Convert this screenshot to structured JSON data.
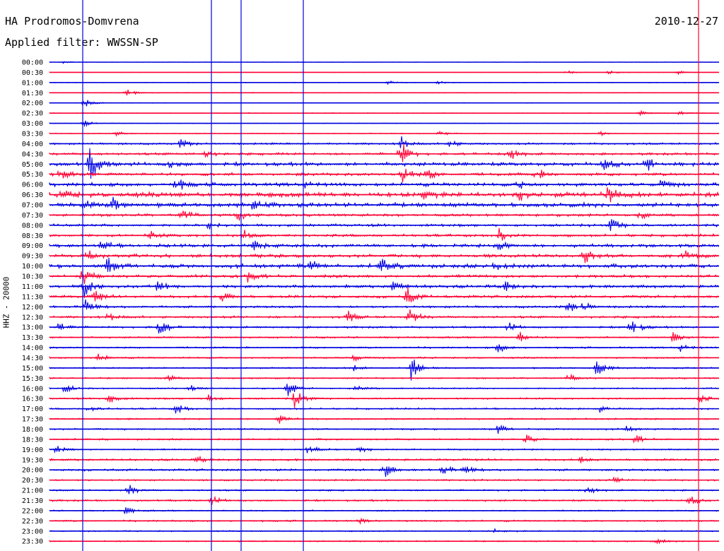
{
  "header": {
    "station": "HA Prodromos-Domvrena",
    "date": "2010-12-27",
    "filter_text": "Applied filter: WWSSN-SP"
  },
  "channel_label": "HHZ - 20000",
  "colors": {
    "blue": "#0000e0",
    "red": "#ff0033"
  },
  "chart_data": {
    "type": "line",
    "title": "HA Prodromos-Domvrena",
    "ylabel": "HHZ - 20000",
    "row_labels": [
      "00:00",
      "00:30",
      "01:00",
      "01:30",
      "02:00",
      "02:30",
      "03:00",
      "03:30",
      "04:00",
      "04:30",
      "05:00",
      "05:30",
      "06:00",
      "06:30",
      "07:00",
      "07:30",
      "08:00",
      "08:30",
      "09:00",
      "09:30",
      "10:00",
      "10:30",
      "11:00",
      "11:30",
      "12:00",
      "12:30",
      "13:00",
      "13:30",
      "14:00",
      "14:30",
      "15:00",
      "15:30",
      "16:00",
      "16:30",
      "17:00",
      "17:30",
      "18:00",
      "18:30",
      "19:00",
      "19:30",
      "20:00",
      "20:30",
      "21:00",
      "21:30",
      "22:00",
      "22:30",
      "23:00",
      "23:30"
    ],
    "trace_colors": [
      "blue",
      "red"
    ],
    "row_noise": [
      0.3,
      0.3,
      0.4,
      0.5,
      0.4,
      0.5,
      0.4,
      0.6,
      1.2,
      1.5,
      2.2,
      1.8,
      2.2,
      3.0,
      2.5,
      1.6,
      1.6,
      1.6,
      2.0,
      2.0,
      2.4,
      1.8,
      1.8,
      1.6,
      1.4,
      1.4,
      1.2,
      1.0,
      1.0,
      1.0,
      0.9,
      0.9,
      0.9,
      1.0,
      1.0,
      0.9,
      1.0,
      1.0,
      0.9,
      1.2,
      1.3,
      1.0,
      1.0,
      1.1,
      0.8,
      1.0,
      0.8,
      0.8
    ],
    "events": [
      {
        "row": 0,
        "x": 91,
        "a": 2
      },
      {
        "row": 1,
        "x": 802,
        "a": 3
      },
      {
        "row": 1,
        "x": 862,
        "a": 3
      },
      {
        "row": 1,
        "x": 960,
        "a": 3
      },
      {
        "row": 2,
        "x": 550,
        "a": 3
      },
      {
        "row": 2,
        "x": 620,
        "a": 2
      },
      {
        "row": 3,
        "x": 180,
        "a": 5
      },
      {
        "row": 4,
        "x": 120,
        "a": 6
      },
      {
        "row": 5,
        "x": 905,
        "a": 3
      },
      {
        "row": 5,
        "x": 962,
        "a": 3
      },
      {
        "row": 6,
        "x": 120,
        "a": 4
      },
      {
        "row": 7,
        "x": 165,
        "a": 3
      },
      {
        "row": 7,
        "x": 622,
        "a": 4
      },
      {
        "row": 7,
        "x": 850,
        "a": 3
      },
      {
        "row": 8,
        "x": 255,
        "a": 6
      },
      {
        "row": 8,
        "x": 568,
        "a": 9
      },
      {
        "row": 8,
        "x": 637,
        "a": 5
      },
      {
        "row": 9,
        "x": 567,
        "a": 20
      },
      {
        "row": 9,
        "x": 722,
        "a": 8
      },
      {
        "row": 9,
        "x": 290,
        "a": 5
      },
      {
        "row": 10,
        "x": 128,
        "a": 26
      },
      {
        "row": 10,
        "x": 915,
        "a": 9
      },
      {
        "row": 10,
        "x": 855,
        "a": 8
      },
      {
        "row": 10,
        "x": 240,
        "a": 5
      },
      {
        "row": 11,
        "x": 570,
        "a": 14
      },
      {
        "row": 11,
        "x": 605,
        "a": 8
      },
      {
        "row": 11,
        "x": 760,
        "a": 8
      },
      {
        "row": 11,
        "x": 85,
        "a": 7
      },
      {
        "row": 12,
        "x": 250,
        "a": 10
      },
      {
        "row": 12,
        "x": 430,
        "a": 8
      },
      {
        "row": 12,
        "x": 935,
        "a": 7
      },
      {
        "row": 12,
        "x": 735,
        "a": 7
      },
      {
        "row": 13,
        "x": 90,
        "a": 8
      },
      {
        "row": 13,
        "x": 860,
        "a": 14
      },
      {
        "row": 13,
        "x": 597,
        "a": 7
      },
      {
        "row": 13,
        "x": 735,
        "a": 7
      },
      {
        "row": 14,
        "x": 160,
        "a": 10
      },
      {
        "row": 14,
        "x": 120,
        "a": 8
      },
      {
        "row": 14,
        "x": 358,
        "a": 7
      },
      {
        "row": 15,
        "x": 338,
        "a": 8
      },
      {
        "row": 15,
        "x": 258,
        "a": 7
      },
      {
        "row": 15,
        "x": 905,
        "a": 6
      },
      {
        "row": 16,
        "x": 295,
        "a": 7
      },
      {
        "row": 16,
        "x": 865,
        "a": 10
      },
      {
        "row": 17,
        "x": 346,
        "a": 7
      },
      {
        "row": 17,
        "x": 706,
        "a": 10
      },
      {
        "row": 17,
        "x": 212,
        "a": 6
      },
      {
        "row": 18,
        "x": 145,
        "a": 8
      },
      {
        "row": 18,
        "x": 360,
        "a": 8
      },
      {
        "row": 18,
        "x": 707,
        "a": 8
      },
      {
        "row": 19,
        "x": 827,
        "a": 14
      },
      {
        "row": 19,
        "x": 125,
        "a": 7
      },
      {
        "row": 19,
        "x": 968,
        "a": 7
      },
      {
        "row": 20,
        "x": 152,
        "a": 13
      },
      {
        "row": 20,
        "x": 540,
        "a": 11
      },
      {
        "row": 20,
        "x": 700,
        "a": 9
      },
      {
        "row": 20,
        "x": 440,
        "a": 7
      },
      {
        "row": 21,
        "x": 352,
        "a": 10
      },
      {
        "row": 21,
        "x": 118,
        "a": 12
      },
      {
        "row": 22,
        "x": 120,
        "a": 16
      },
      {
        "row": 22,
        "x": 225,
        "a": 10
      },
      {
        "row": 22,
        "x": 555,
        "a": 9
      },
      {
        "row": 22,
        "x": 715,
        "a": 8
      },
      {
        "row": 23,
        "x": 576,
        "a": 14
      },
      {
        "row": 23,
        "x": 135,
        "a": 8
      },
      {
        "row": 23,
        "x": 315,
        "a": 7
      },
      {
        "row": 24,
        "x": 805,
        "a": 8
      },
      {
        "row": 24,
        "x": 826,
        "a": 7
      },
      {
        "row": 24,
        "x": 120,
        "a": 12
      },
      {
        "row": 25,
        "x": 580,
        "a": 13
      },
      {
        "row": 25,
        "x": 492,
        "a": 9
      },
      {
        "row": 25,
        "x": 155,
        "a": 6
      },
      {
        "row": 26,
        "x": 224,
        "a": 16
      },
      {
        "row": 26,
        "x": 893,
        "a": 18
      },
      {
        "row": 26,
        "x": 84,
        "a": 8
      },
      {
        "row": 26,
        "x": 720,
        "a": 7
      },
      {
        "row": 27,
        "x": 736,
        "a": 7
      },
      {
        "row": 27,
        "x": 952,
        "a": 7
      },
      {
        "row": 28,
        "x": 962,
        "a": 9
      },
      {
        "row": 28,
        "x": 705,
        "a": 8
      },
      {
        "row": 29,
        "x": 140,
        "a": 6
      },
      {
        "row": 29,
        "x": 500,
        "a": 5
      },
      {
        "row": 30,
        "x": 581,
        "a": 20
      },
      {
        "row": 30,
        "x": 845,
        "a": 13
      },
      {
        "row": 30,
        "x": 500,
        "a": 5
      },
      {
        "row": 31,
        "x": 238,
        "a": 5
      },
      {
        "row": 31,
        "x": 805,
        "a": 5
      },
      {
        "row": 32,
        "x": 91,
        "a": 8
      },
      {
        "row": 32,
        "x": 408,
        "a": 12
      },
      {
        "row": 32,
        "x": 505,
        "a": 5
      },
      {
        "row": 32,
        "x": 268,
        "a": 5
      },
      {
        "row": 33,
        "x": 418,
        "a": 16
      },
      {
        "row": 33,
        "x": 155,
        "a": 9
      },
      {
        "row": 33,
        "x": 295,
        "a": 6
      },
      {
        "row": 33,
        "x": 991,
        "a": 6
      },
      {
        "row": 34,
        "x": 250,
        "a": 8
      },
      {
        "row": 34,
        "x": 127,
        "a": 5
      },
      {
        "row": 34,
        "x": 848,
        "a": 5
      },
      {
        "row": 35,
        "x": 395,
        "a": 6
      },
      {
        "row": 36,
        "x": 705,
        "a": 7
      },
      {
        "row": 36,
        "x": 885,
        "a": 5
      },
      {
        "row": 37,
        "x": 745,
        "a": 7
      },
      {
        "row": 37,
        "x": 899,
        "a": 7
      },
      {
        "row": 38,
        "x": 80,
        "a": 6
      },
      {
        "row": 38,
        "x": 508,
        "a": 7
      },
      {
        "row": 38,
        "x": 437,
        "a": 9
      },
      {
        "row": 39,
        "x": 280,
        "a": 5
      },
      {
        "row": 39,
        "x": 820,
        "a": 5
      },
      {
        "row": 40,
        "x": 545,
        "a": 11
      },
      {
        "row": 40,
        "x": 627,
        "a": 8
      },
      {
        "row": 40,
        "x": 658,
        "a": 6
      },
      {
        "row": 41,
        "x": 870,
        "a": 5
      },
      {
        "row": 42,
        "x": 183,
        "a": 8
      },
      {
        "row": 42,
        "x": 832,
        "a": 5
      },
      {
        "row": 43,
        "x": 300,
        "a": 7
      },
      {
        "row": 43,
        "x": 976,
        "a": 7
      },
      {
        "row": 44,
        "x": 177,
        "a": 6
      },
      {
        "row": 45,
        "x": 510,
        "a": 3
      },
      {
        "row": 46,
        "x": 700,
        "a": 3
      },
      {
        "row": 47,
        "x": 930,
        "a": 3
      }
    ]
  }
}
